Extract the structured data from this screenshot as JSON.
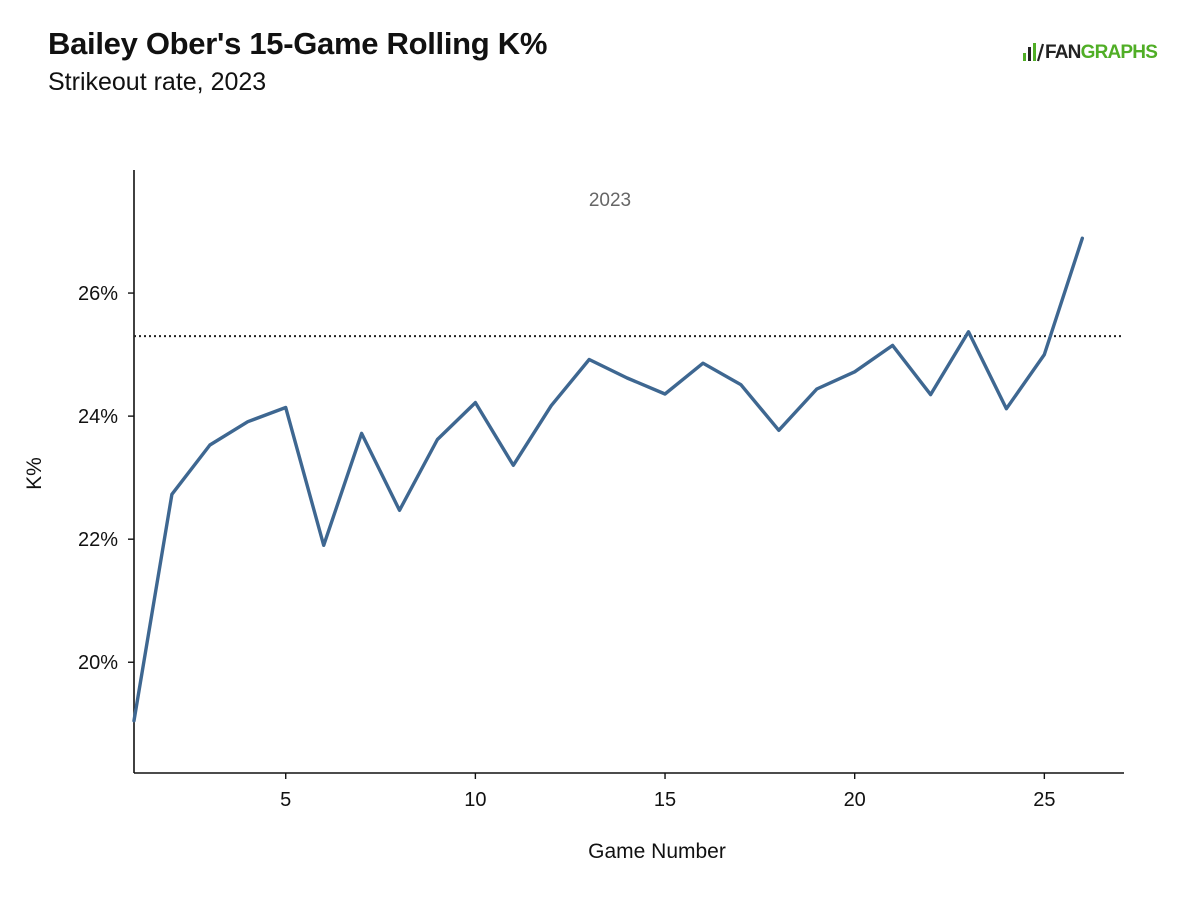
{
  "header": {
    "title": "Bailey Ober's 15-Game Rolling K%",
    "subtitle": "Strikeout rate, 2023"
  },
  "logo": {
    "text_part1": "FAN",
    "text_part2": "GRAPHS",
    "icon": "batter-icon",
    "color_dark": "#222222",
    "color_accent": "#50ae26"
  },
  "chart_data": {
    "type": "line",
    "title": "Bailey Ober's 15-Game Rolling K%",
    "subtitle": "Strikeout rate, 2023",
    "xlabel": "Game Number",
    "ylabel": "K%",
    "xlim": [
      1,
      27.1
    ],
    "ylim": [
      18.2,
      28.0
    ],
    "x_ticks": [
      5,
      10,
      15,
      20,
      25
    ],
    "x_tick_labels": [
      "5",
      "10",
      "15",
      "20",
      "25"
    ],
    "y_ticks": [
      20,
      22,
      24,
      26
    ],
    "y_tick_labels": [
      "20%",
      "22%",
      "24%",
      "26%"
    ],
    "grid": false,
    "panel_label": "2023",
    "series": [
      {
        "color": "#3e6791",
        "x": [
          1,
          2,
          3,
          4,
          5,
          6,
          7,
          8,
          9,
          10,
          11,
          12,
          13,
          14,
          15,
          16,
          17,
          18,
          19,
          20,
          21,
          22,
          23,
          24,
          25,
          26
        ],
        "values": [
          19.05,
          22.73,
          23.53,
          23.91,
          24.14,
          21.9,
          23.72,
          22.47,
          23.62,
          24.22,
          23.2,
          24.17,
          24.92,
          24.62,
          24.36,
          24.86,
          24.51,
          23.77,
          24.44,
          24.72,
          25.15,
          24.35,
          25.37,
          24.12,
          25.0,
          26.89
        ]
      }
    ],
    "reference_line": {
      "value": 25.3,
      "style": "dotted",
      "color": "#222222"
    }
  }
}
